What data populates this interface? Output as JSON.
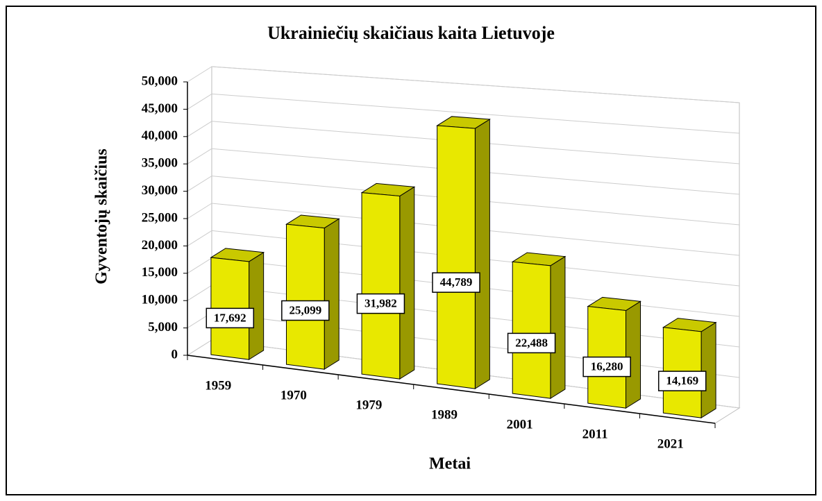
{
  "chart_data": {
    "type": "bar3d",
    "title": "Ukrainiečių skaičiaus kaita Lietuvoje",
    "xlabel": "Metai",
    "ylabel": "Gyventojų skaičius",
    "categories": [
      "1959",
      "1970",
      "1979",
      "1989",
      "2001",
      "2011",
      "2021"
    ],
    "values": [
      17692,
      25099,
      31982,
      44789,
      22488,
      16280,
      14169
    ],
    "value_labels": [
      "17,692",
      "25,099",
      "31,982",
      "44,789",
      "22,488",
      "16,280",
      "14,169"
    ],
    "color": "#e8e800",
    "ylim": [
      0,
      50000
    ],
    "yticks": [
      0,
      {
        "value": 5000,
        "label": "5,000"
      },
      {
        "value": 10000,
        "label": "10,000"
      },
      {
        "value": 15000,
        "label": "15,000"
      },
      {
        "value": 20000,
        "label": "20,000"
      },
      {
        "value": 25000,
        "label": "25,000"
      },
      {
        "value": 30000,
        "label": "30,000"
      },
      {
        "value": 35000,
        "label": "35,000"
      },
      {
        "value": 40000,
        "label": "40,000"
      },
      {
        "value": 45000,
        "label": "45,000"
      },
      {
        "value": 50000,
        "label": "50,000"
      }
    ],
    "grid": true
  }
}
